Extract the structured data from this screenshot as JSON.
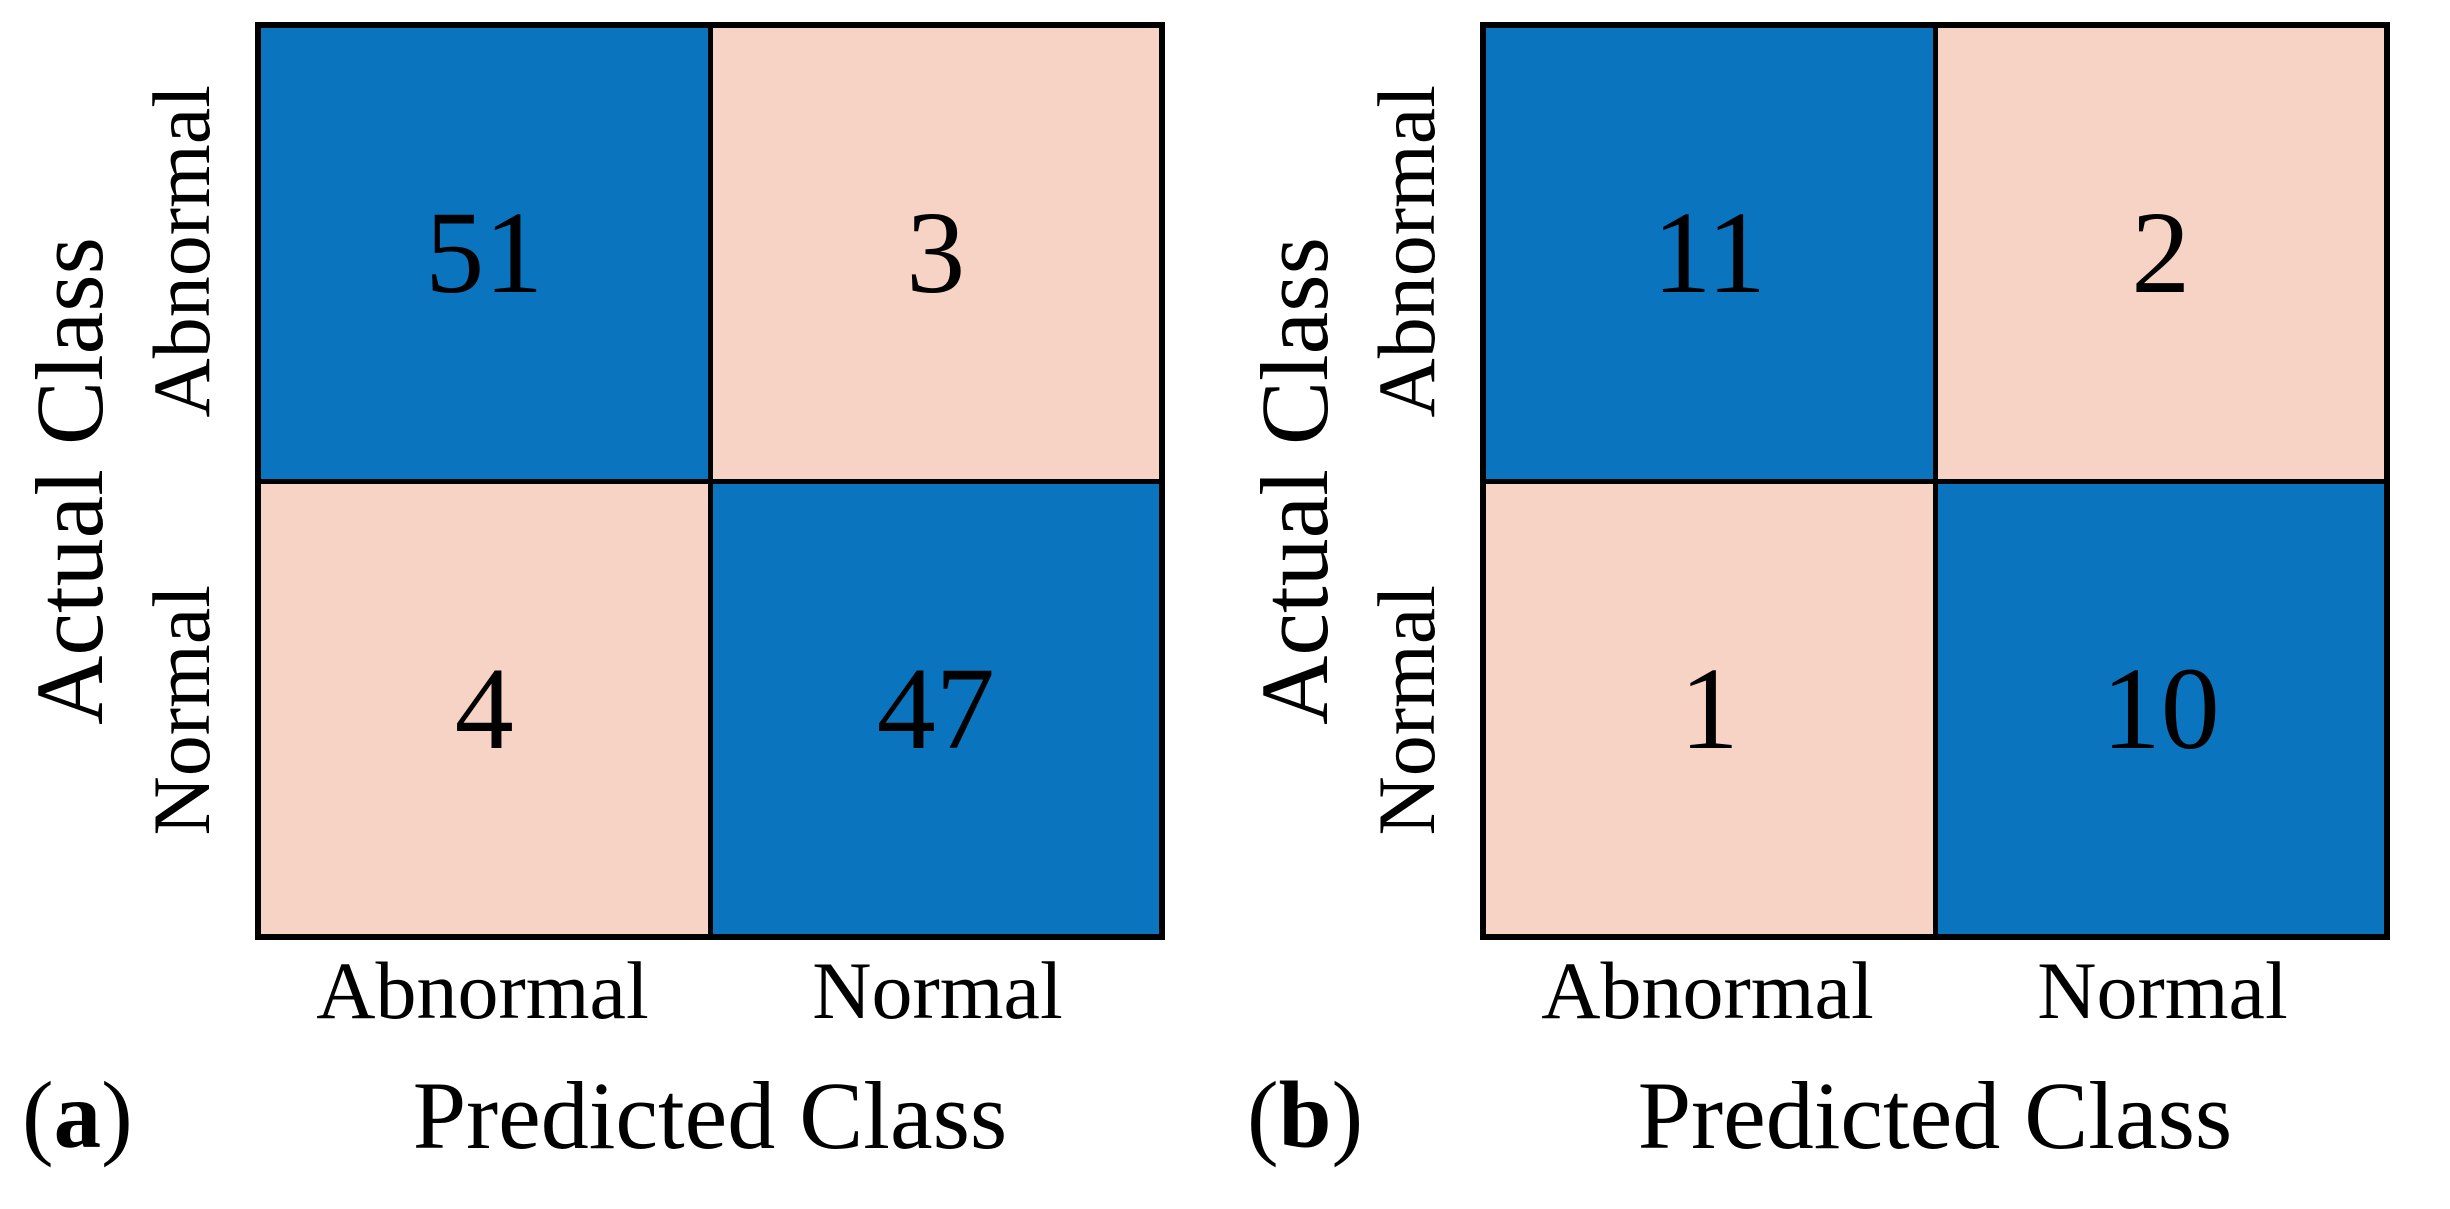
{
  "figure": {
    "background_color": "#FFFFFF",
    "grid_line_color": "#000000",
    "text_color": "#000000",
    "diagonal_cell_color": "#0B74BE",
    "off_diagonal_cell_color": "#F6D3C4"
  },
  "chart_data": [
    {
      "type": "heatmap",
      "panel_label": {
        "open": "(",
        "letter": "a",
        "close": ")"
      },
      "xlabel": "Predicted Class",
      "ylabel": "Actual Class",
      "x_categories": [
        "Abnormal",
        "Normal"
      ],
      "y_categories": [
        "Abnormal",
        "Normal"
      ],
      "values": [
        [
          51,
          3
        ],
        [
          4,
          47
        ]
      ],
      "cell_colors": [
        [
          "#0B74BE",
          "#F6D3C4"
        ],
        [
          "#F6D3C4",
          "#0B74BE"
        ]
      ],
      "legend": "none",
      "grid": "black cell borders"
    },
    {
      "type": "heatmap",
      "panel_label": {
        "open": "(",
        "letter": "b",
        "close": ")"
      },
      "xlabel": "Predicted Class",
      "ylabel": "Actual Class",
      "x_categories": [
        "Abnormal",
        "Normal"
      ],
      "y_categories": [
        "Abnormal",
        "Normal"
      ],
      "values": [
        [
          11,
          2
        ],
        [
          1,
          10
        ]
      ],
      "cell_colors": [
        [
          "#0B74BE",
          "#F6D3C4"
        ],
        [
          "#F6D3C4",
          "#0B74BE"
        ]
      ],
      "legend": "none",
      "grid": "black cell borders"
    }
  ]
}
